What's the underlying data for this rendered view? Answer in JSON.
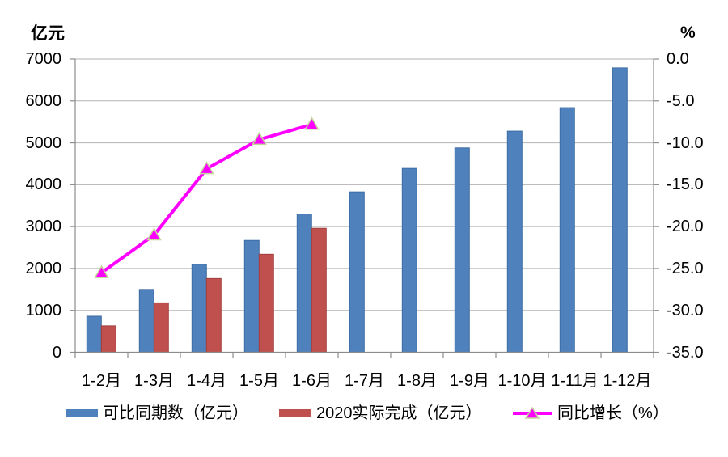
{
  "chart_data": {
    "type": "bar+line combo",
    "categories": [
      "1-2月",
      "1-3月",
      "1-4月",
      "1-5月",
      "1-6月",
      "1-7月",
      "1-8月",
      "1-9月",
      "1-10月",
      "1-11月",
      "1-12月"
    ],
    "left_axis": {
      "title": "亿元",
      "min": 0,
      "max": 7000,
      "step": 1000,
      "ticks": [
        "7000",
        "6000",
        "5000",
        "4000",
        "3000",
        "2000",
        "1000",
        "0"
      ]
    },
    "right_axis": {
      "title": "%",
      "min": -35,
      "max": 0,
      "step": 5,
      "ticks": [
        "0.0",
        "-5.0",
        "-10.0",
        "-15.0",
        "-20.0",
        "-25.0",
        "-30.0",
        "-35.0"
      ]
    },
    "series": [
      {
        "name": "可比同期数（亿元）",
        "type": "bar",
        "axis": "left",
        "color": "#4F81BD",
        "border_color": "#3F6DA3",
        "values": [
          860,
          1500,
          2100,
          2670,
          3300,
          3830,
          4390,
          4880,
          5280,
          5840,
          6790
        ]
      },
      {
        "name": "2020实际完成（亿元）",
        "type": "bar",
        "axis": "left",
        "color": "#C0504D",
        "border_color": "#A0403E",
        "values": [
          630,
          1180,
          1760,
          2340,
          2960,
          null,
          null,
          null,
          null,
          null,
          null
        ]
      },
      {
        "name": "同比增长（%）",
        "type": "line",
        "axis": "right",
        "color": "#FF00FF",
        "marker": "triangle",
        "marker_border": "#C3D69B",
        "values": [
          -25.5,
          -21.0,
          -13.1,
          -9.6,
          -7.8,
          null,
          null,
          null,
          null,
          null,
          null
        ]
      }
    ],
    "grid": "horizontal",
    "legend_position": "bottom"
  },
  "colors": {
    "background": "#FFFFFF",
    "gridline": "#B2B2B2",
    "axis_line": "#8C8C8C",
    "text": "#000000"
  }
}
